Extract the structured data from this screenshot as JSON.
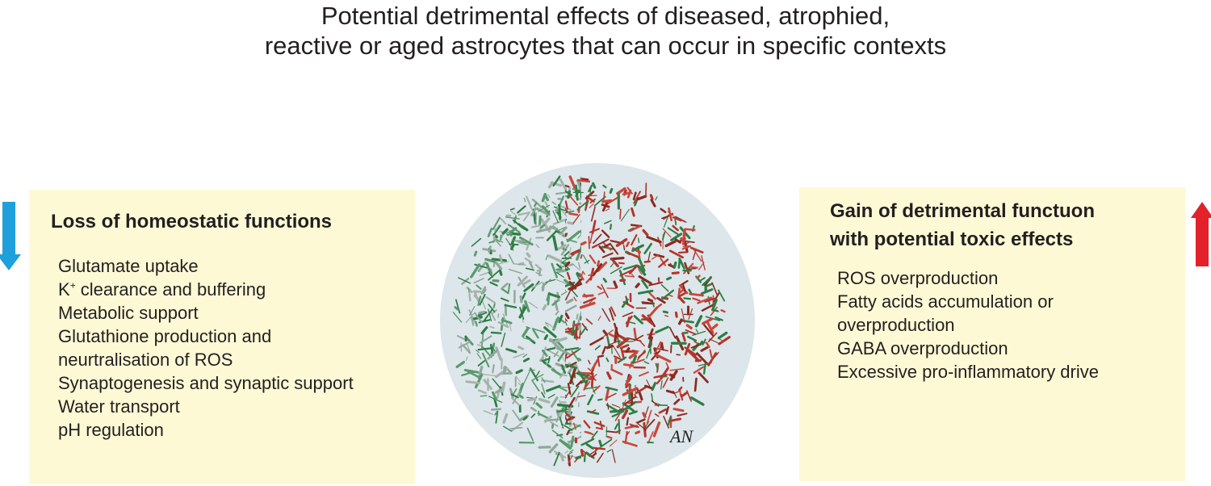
{
  "title": {
    "lines": [
      "Potential detrimental effects of diseased, atrophied,",
      "reactive or aged astrocytes that can occur in specific contexts"
    ]
  },
  "left_box": {
    "title": "Loss of homeostatic functions",
    "items": [
      "Glutamate uptake",
      {
        "base": "K",
        "sup": "+",
        "rest": "clearance and buffering"
      },
      "Metabolic support",
      "Glutathione production and",
      "neurtralisation of ROS",
      "Synaptogenesis and synaptic support",
      "Water transport",
      "pH regulation"
    ]
  },
  "right_box": {
    "title_lines": [
      "Gain of detrimental functuon",
      "with potential toxic effects"
    ],
    "items": [
      "ROS overproduction",
      "Fatty acids accumulation or",
      "overproduction",
      "GABA overproduction",
      "Excessive pro-inflammatory drive"
    ]
  },
  "signature": "AN"
}
